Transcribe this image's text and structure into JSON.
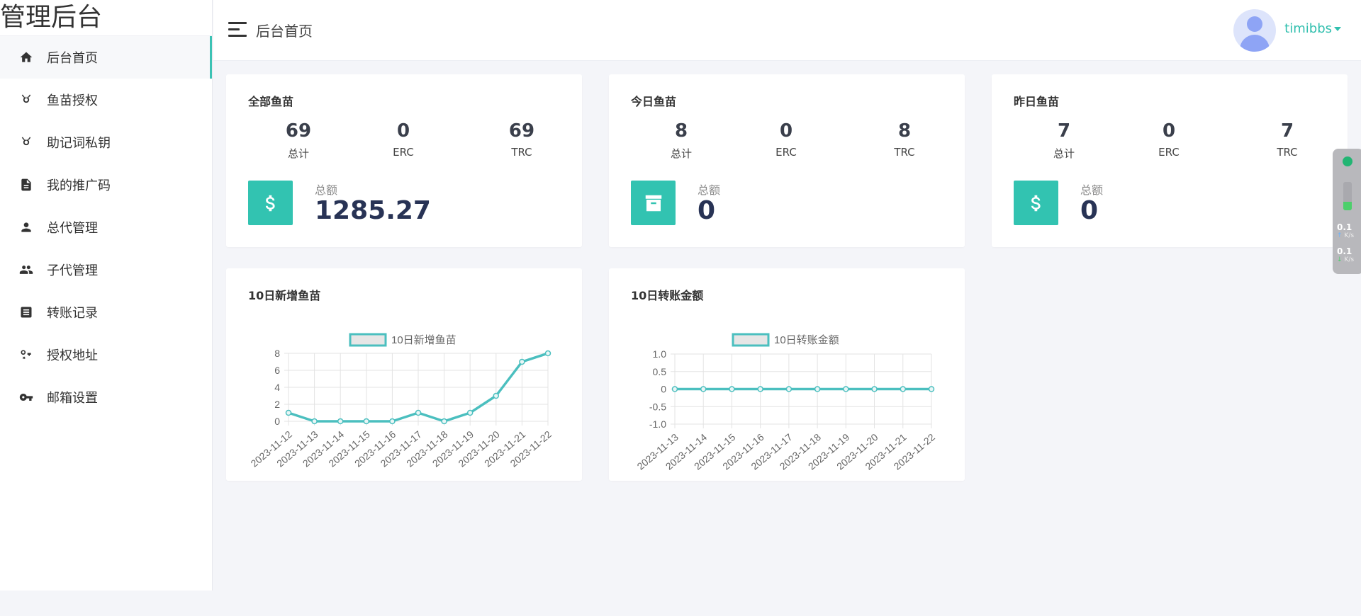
{
  "brand": "管理后台",
  "sidebar": {
    "items": [
      {
        "label": "后台首页",
        "icon": "home-icon"
      },
      {
        "label": "鱼苗授权",
        "icon": "fish-icon"
      },
      {
        "label": "助记词私钥",
        "icon": "fish-icon"
      },
      {
        "label": "我的推广码",
        "icon": "document-icon"
      },
      {
        "label": "总代管理",
        "icon": "person-icon"
      },
      {
        "label": "子代管理",
        "icon": "people-icon"
      },
      {
        "label": "转账记录",
        "icon": "record-icon"
      },
      {
        "label": "授权地址",
        "icon": "key-x-icon"
      },
      {
        "label": "邮箱设置",
        "icon": "key-icon"
      }
    ]
  },
  "header": {
    "title": "后台首页",
    "username": "timibbs"
  },
  "cards": [
    {
      "title": "全部鱼苗",
      "stats": [
        {
          "value": "69",
          "label": "总计"
        },
        {
          "value": "0",
          "label": "ERC"
        },
        {
          "value": "69",
          "label": "TRC"
        }
      ],
      "total_label": "总额",
      "total_value": "1285.27",
      "icon": "dollar-icon"
    },
    {
      "title": "今日鱼苗",
      "stats": [
        {
          "value": "8",
          "label": "总计"
        },
        {
          "value": "0",
          "label": "ERC"
        },
        {
          "value": "8",
          "label": "TRC"
        }
      ],
      "total_label": "总额",
      "total_value": "0",
      "icon": "archive-icon"
    },
    {
      "title": "昨日鱼苗",
      "stats": [
        {
          "value": "7",
          "label": "总计"
        },
        {
          "value": "0",
          "label": "ERC"
        },
        {
          "value": "7",
          "label": "TRC"
        }
      ],
      "total_label": "总额",
      "total_value": "0",
      "icon": "dollar-icon"
    }
  ],
  "charts": [
    {
      "title": "10日新增鱼苗",
      "chart_data": {
        "type": "line",
        "categories": [
          "2023-11-12",
          "2023-11-13",
          "2023-11-14",
          "2023-11-15",
          "2023-11-16",
          "2023-11-17",
          "2023-11-18",
          "2023-11-19",
          "2023-11-20",
          "2023-11-21",
          "2023-11-22"
        ],
        "series": [
          {
            "name": "10日新增鱼苗",
            "values": [
              1,
              0,
              0,
              0,
              0,
              1,
              0,
              1,
              3,
              7,
              8
            ]
          }
        ],
        "yticks": [
          "0",
          "2",
          "4",
          "6",
          "8"
        ],
        "ylim": [
          0,
          8
        ],
        "grid": true,
        "legend": "top-center",
        "color": "#4bbfbf"
      }
    },
    {
      "title": "10日转账金额",
      "chart_data": {
        "type": "line",
        "categories": [
          "2023-11-13",
          "2023-11-14",
          "2023-11-15",
          "2023-11-16",
          "2023-11-17",
          "2023-11-18",
          "2023-11-19",
          "2023-11-20",
          "2023-11-21",
          "2023-11-22"
        ],
        "series": [
          {
            "name": "10日转账金额",
            "values": [
              0,
              0,
              0,
              0,
              0,
              0,
              0,
              0,
              0,
              0
            ]
          }
        ],
        "yticks": [
          "-1.0",
          "-0.5",
          "0",
          "0.5",
          "1.0"
        ],
        "ylim": [
          -1,
          1
        ],
        "grid": true,
        "legend": "top-center",
        "color": "#4bbfbf"
      }
    }
  ],
  "net_widget": {
    "up_value": "0.1",
    "up_unit": "K/s",
    "down_value": "0.1",
    "down_unit": "K/s",
    "level": 0.3
  }
}
